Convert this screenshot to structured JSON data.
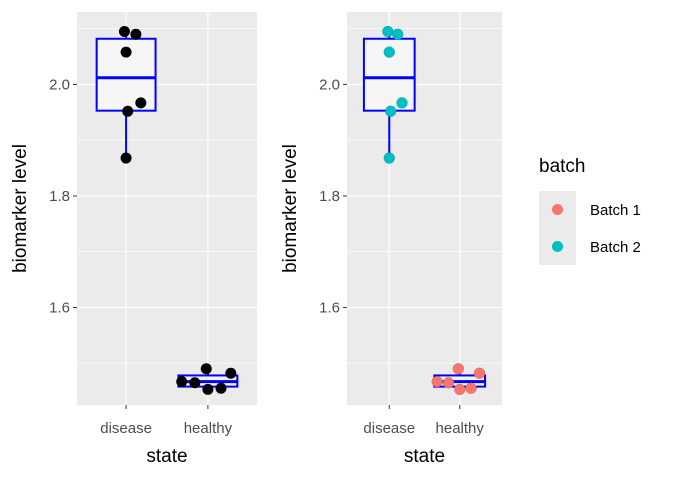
{
  "chart_data": [
    {
      "type": "boxplot",
      "xlabel": "state",
      "ylabel": "biomarker level",
      "categories": [
        "disease",
        "healthy"
      ],
      "yticks": [
        1.6,
        1.8,
        2.0
      ],
      "ylim": [
        1.425,
        2.13
      ],
      "grid": true,
      "box_color": "#0000FF",
      "box_fill": "#F5F5F5",
      "point_color": "#000000",
      "boxes": [
        {
          "category": "disease",
          "whisker_low": 1.868,
          "q1": 1.953,
          "median": 2.012,
          "q3": 2.082,
          "whisker_high": 2.095
        },
        {
          "category": "healthy",
          "whisker_low": 1.455,
          "q1": 1.458,
          "median": 1.467,
          "q3": 1.478,
          "whisker_high": 1.49
        }
      ],
      "points": [
        {
          "category": "disease",
          "jitter": -0.02,
          "y": 2.095
        },
        {
          "category": "disease",
          "jitter": 0.12,
          "y": 2.09
        },
        {
          "category": "disease",
          "jitter": 0.0,
          "y": 2.058
        },
        {
          "category": "disease",
          "jitter": 0.18,
          "y": 1.967
        },
        {
          "category": "disease",
          "jitter": 0.02,
          "y": 1.952
        },
        {
          "category": "disease",
          "jitter": 0.0,
          "y": 1.868
        },
        {
          "category": "healthy",
          "jitter": -0.32,
          "y": 1.467
        },
        {
          "category": "healthy",
          "jitter": -0.16,
          "y": 1.465
        },
        {
          "category": "healthy",
          "jitter": -0.02,
          "y": 1.49
        },
        {
          "category": "healthy",
          "jitter": 0.28,
          "y": 1.482
        },
        {
          "category": "healthy",
          "jitter": 0.16,
          "y": 1.455
        },
        {
          "category": "healthy",
          "jitter": 0.0,
          "y": 1.453
        }
      ]
    },
    {
      "type": "boxplot",
      "xlabel": "state",
      "ylabel": "biomarker level",
      "categories": [
        "disease",
        "healthy"
      ],
      "yticks": [
        1.6,
        1.8,
        2.0
      ],
      "ylim": [
        1.425,
        2.13
      ],
      "grid": true,
      "box_color": "#0000FF",
      "box_fill": "#F5F5F5",
      "boxes": [
        {
          "category": "disease",
          "whisker_low": 1.868,
          "q1": 1.953,
          "median": 2.012,
          "q3": 2.082,
          "whisker_high": 2.095
        },
        {
          "category": "healthy",
          "whisker_low": 1.455,
          "q1": 1.458,
          "median": 1.467,
          "q3": 1.478,
          "whisker_high": 1.49
        }
      ],
      "series": [
        {
          "name": "Batch 1",
          "color": "#F8766D"
        },
        {
          "name": "Batch 2",
          "color": "#00BFC4"
        }
      ],
      "points": [
        {
          "category": "disease",
          "jitter": -0.02,
          "y": 2.095,
          "series": "Batch 2"
        },
        {
          "category": "disease",
          "jitter": 0.12,
          "y": 2.09,
          "series": "Batch 2"
        },
        {
          "category": "disease",
          "jitter": 0.0,
          "y": 2.058,
          "series": "Batch 2"
        },
        {
          "category": "disease",
          "jitter": 0.18,
          "y": 1.967,
          "series": "Batch 2"
        },
        {
          "category": "disease",
          "jitter": 0.02,
          "y": 1.952,
          "series": "Batch 2"
        },
        {
          "category": "disease",
          "jitter": 0.0,
          "y": 1.868,
          "series": "Batch 2"
        },
        {
          "category": "healthy",
          "jitter": -0.32,
          "y": 1.467,
          "series": "Batch 1"
        },
        {
          "category": "healthy",
          "jitter": -0.16,
          "y": 1.465,
          "series": "Batch 1"
        },
        {
          "category": "healthy",
          "jitter": -0.02,
          "y": 1.49,
          "series": "Batch 1"
        },
        {
          "category": "healthy",
          "jitter": 0.28,
          "y": 1.482,
          "series": "Batch 1"
        },
        {
          "category": "healthy",
          "jitter": 0.16,
          "y": 1.455,
          "series": "Batch 1"
        },
        {
          "category": "healthy",
          "jitter": 0.0,
          "y": 1.453,
          "series": "Batch 1"
        }
      ],
      "legend": {
        "title": "batch",
        "position": "right"
      }
    }
  ]
}
